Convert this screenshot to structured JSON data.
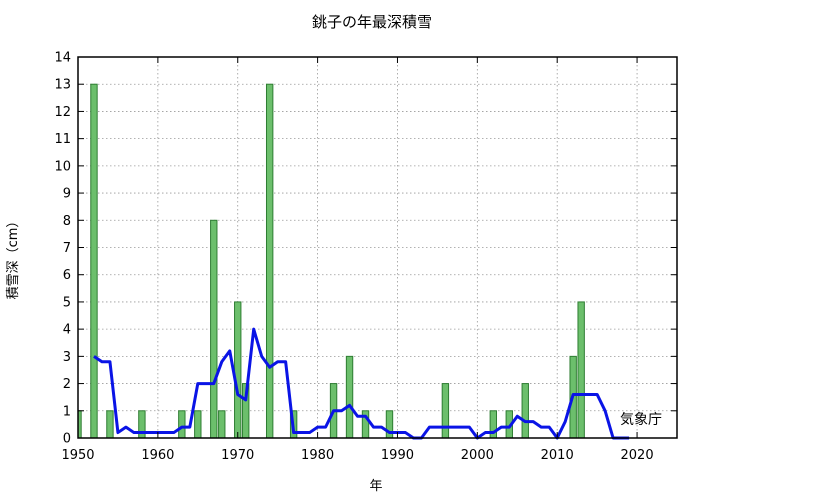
{
  "chart_data": {
    "type": "bar",
    "title": "銚子の年最深積雪",
    "xlabel": "年",
    "ylabel": "積雪深（cm）",
    "credit": "気象庁",
    "xlim": [
      1950,
      2025
    ],
    "ylim": [
      0,
      14
    ],
    "xticks": [
      1950,
      1960,
      1970,
      1980,
      1990,
      2000,
      2010,
      2020
    ],
    "yticks": [
      0,
      1,
      2,
      3,
      4,
      5,
      6,
      7,
      8,
      9,
      10,
      11,
      12,
      13,
      14
    ],
    "grid": true,
    "series": [
      {
        "kind": "bar",
        "color": "#6cbf6c",
        "edge_color": "#2e7d32",
        "points": [
          {
            "x": 1950,
            "y": 1
          },
          {
            "x": 1952,
            "y": 13
          },
          {
            "x": 1954,
            "y": 1
          },
          {
            "x": 1958,
            "y": 1
          },
          {
            "x": 1963,
            "y": 1
          },
          {
            "x": 1965,
            "y": 1
          },
          {
            "x": 1967,
            "y": 8
          },
          {
            "x": 1968,
            "y": 1
          },
          {
            "x": 1970,
            "y": 5
          },
          {
            "x": 1971,
            "y": 2
          },
          {
            "x": 1974,
            "y": 13
          },
          {
            "x": 1977,
            "y": 1
          },
          {
            "x": 1982,
            "y": 2
          },
          {
            "x": 1984,
            "y": 3
          },
          {
            "x": 1986,
            "y": 1
          },
          {
            "x": 1989,
            "y": 1
          },
          {
            "x": 1996,
            "y": 2
          },
          {
            "x": 2002,
            "y": 1
          },
          {
            "x": 2004,
            "y": 1
          },
          {
            "x": 2006,
            "y": 2
          },
          {
            "x": 2012,
            "y": 3
          },
          {
            "x": 2013,
            "y": 5
          }
        ]
      },
      {
        "kind": "line",
        "color": "#0a14e6",
        "x": [
          1952,
          1953,
          1954,
          1955,
          1956,
          1957,
          1958,
          1959,
          1960,
          1961,
          1962,
          1963,
          1964,
          1965,
          1966,
          1967,
          1968,
          1969,
          1970,
          1971,
          1972,
          1973,
          1974,
          1975,
          1976,
          1977,
          1978,
          1979,
          1980,
          1981,
          1982,
          1983,
          1984,
          1985,
          1986,
          1987,
          1988,
          1989,
          1990,
          1991,
          1992,
          1993,
          1994,
          1995,
          1996,
          1997,
          1998,
          1999,
          2000,
          2001,
          2002,
          2003,
          2004,
          2005,
          2006,
          2007,
          2008,
          2009,
          2010,
          2011,
          2012,
          2013,
          2014,
          2015,
          2016,
          2017,
          2018,
          2019
        ],
        "y": [
          3,
          2.8,
          2.8,
          0.2,
          0.4,
          0.2,
          0.2,
          0.2,
          0.2,
          0.2,
          0.2,
          0.4,
          0.4,
          2,
          2,
          2,
          2.8,
          3.2,
          1.6,
          1.4,
          4,
          3,
          2.6,
          2.8,
          2.8,
          0.2,
          0.2,
          0.2,
          0.4,
          0.4,
          1,
          1,
          1.2,
          0.8,
          0.8,
          0.4,
          0.4,
          0.2,
          0.2,
          0.2,
          0,
          0,
          0.4,
          0.4,
          0.4,
          0.4,
          0.4,
          0.4,
          0,
          0.2,
          0.2,
          0.4,
          0.4,
          0.8,
          0.6,
          0.6,
          0.4,
          0.4,
          0,
          0.6,
          1.6,
          1.6,
          1.6,
          1.6,
          1,
          0,
          0,
          0
        ]
      }
    ]
  }
}
